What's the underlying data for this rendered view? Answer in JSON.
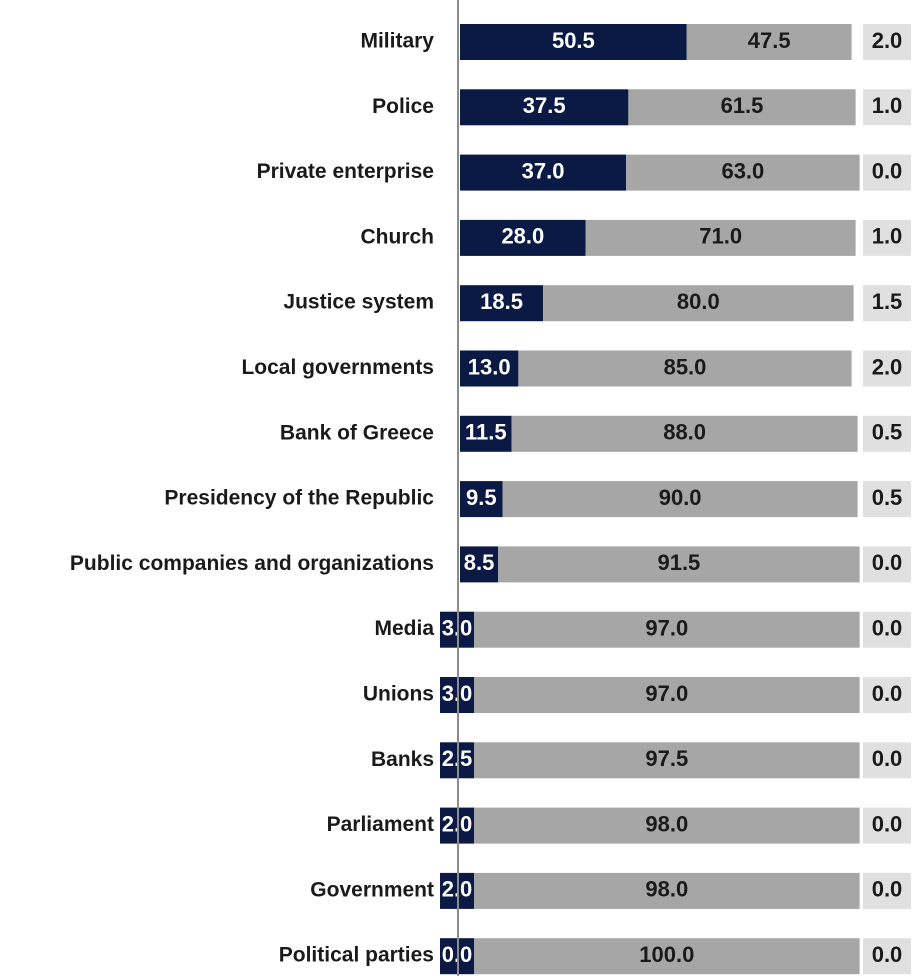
{
  "chart_data": {
    "type": "bar",
    "stacked": true,
    "orientation": "horizontal",
    "title": "",
    "xlabel": "",
    "ylabel": "",
    "xlim": [
      0,
      100
    ],
    "grid": false,
    "legend": "none",
    "categories": [
      "Military",
      "Police",
      "Private enterprise",
      "Church",
      "Justice system",
      "Local governments",
      "Bank of Greece",
      "Presidency of the Republic",
      "Public companies and organizations",
      "Media",
      "Unions",
      "Banks",
      "Parliament",
      "Government",
      "Political parties"
    ],
    "series": [
      {
        "color": "#0a1a45",
        "values": [
          50.5,
          37.5,
          37.0,
          28.0,
          18.5,
          13.0,
          11.5,
          9.5,
          8.5,
          3.0,
          3.0,
          2.5,
          2.0,
          2.0,
          0.0
        ]
      },
      {
        "color": "#a6a6a6",
        "values": [
          47.5,
          61.5,
          63.0,
          71.0,
          80.0,
          85.0,
          88.0,
          90.0,
          91.5,
          97.0,
          97.0,
          97.5,
          98.0,
          98.0,
          100.0
        ]
      },
      {
        "color": "#e0e0e0",
        "values": [
          2.0,
          1.0,
          0.0,
          1.0,
          1.5,
          2.0,
          0.5,
          0.5,
          0.0,
          0.0,
          0.0,
          0.0,
          0.0,
          0.0,
          0.0
        ]
      }
    ],
    "value_labels": [
      [
        "50.5",
        "47.5",
        "2.0"
      ],
      [
        "37.5",
        "61.5",
        "1.0"
      ],
      [
        "37.0",
        "63.0",
        "0.0"
      ],
      [
        "28.0",
        "71.0",
        "1.0"
      ],
      [
        "18.5",
        "80.0",
        "1.5"
      ],
      [
        "13.0",
        "85.0",
        "2.0"
      ],
      [
        "11.5",
        "88.0",
        "0.5"
      ],
      [
        "9.5",
        "90.0",
        "0.5"
      ],
      [
        "8.5",
        "91.5",
        "0.0"
      ],
      [
        "3.0",
        "97.0",
        "0.0"
      ],
      [
        "3.0",
        "97.0",
        "0.0"
      ],
      [
        "2.5",
        "97.5",
        "0.0"
      ],
      [
        "2.0",
        "98.0",
        "0.0"
      ],
      [
        "2.0",
        "98.0",
        "0.0"
      ],
      [
        "0.0",
        "100.0",
        "0.0"
      ]
    ],
    "label_colors": {
      "first": "#ffffff",
      "second": "#1a1a1a",
      "third": "#1a1a1a",
      "category": "#1a1a1a"
    },
    "axis_color": "#8c8c8c"
  }
}
